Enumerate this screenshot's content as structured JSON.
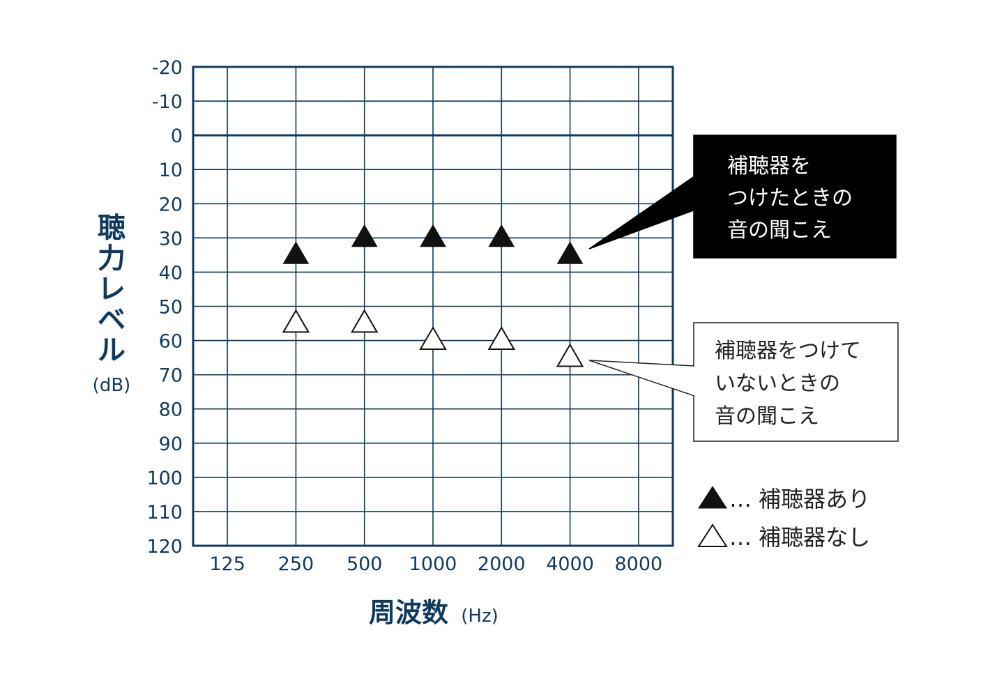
{
  "colors": {
    "grid": "#0f3a5f",
    "text": "#0f3a5f",
    "with_aid": "#111111",
    "without_aid": "#111111",
    "callout_dark_bg": "#000000"
  },
  "chart_data": {
    "type": "scatter",
    "xlabel": "周波数",
    "xlabel_unit": "(Hz)",
    "ylabel": "聴力レベル",
    "ylabel_unit": "(dB)",
    "categories": [
      "125",
      "250",
      "500",
      "1000",
      "2000",
      "4000",
      "8000"
    ],
    "y_ticks": [
      "-20",
      "-10",
      "0",
      "10",
      "20",
      "30",
      "40",
      "50",
      "60",
      "70",
      "80",
      "90",
      "100",
      "110",
      "120"
    ],
    "ylim": [
      -20,
      120
    ],
    "y_inverted": true,
    "grid": true,
    "series": [
      {
        "name": "補聴器あり",
        "marker": "filled-triangle",
        "points": [
          {
            "x": "250",
            "y": 35
          },
          {
            "x": "500",
            "y": 30
          },
          {
            "x": "1000",
            "y": 30
          },
          {
            "x": "2000",
            "y": 30
          },
          {
            "x": "4000",
            "y": 35
          }
        ]
      },
      {
        "name": "補聴器なし",
        "marker": "open-triangle",
        "points": [
          {
            "x": "250",
            "y": 55
          },
          {
            "x": "500",
            "y": 55
          },
          {
            "x": "1000",
            "y": 60
          },
          {
            "x": "2000",
            "y": 60
          },
          {
            "x": "4000",
            "y": 65
          }
        ]
      }
    ],
    "annotations": [
      {
        "series": "補聴器あり",
        "lines": [
          "補聴器を",
          "つけたときの",
          "音の聞こえ"
        ],
        "style": "dark"
      },
      {
        "series": "補聴器なし",
        "lines": [
          "補聴器をつけて",
          "いないときの",
          "音の聞こえ"
        ],
        "style": "light"
      }
    ],
    "legend": [
      {
        "symbol": "▲",
        "text": "… 補聴器あり"
      },
      {
        "symbol": "△",
        "text": "… 補聴器なし"
      }
    ],
    "legend_position": "right"
  }
}
